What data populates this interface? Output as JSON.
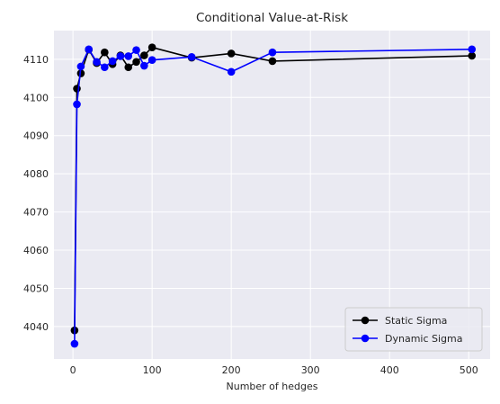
{
  "chart_data": {
    "type": "line",
    "title": "Conditional Value-at-Risk",
    "xlabel": "Number of hedges",
    "ylabel": "",
    "xlim": [
      -24,
      527
    ],
    "ylim": [
      4031.5,
      4117.5
    ],
    "xticks": [
      0,
      100,
      200,
      300,
      400,
      500
    ],
    "yticks": [
      4040,
      4050,
      4060,
      4070,
      4080,
      4090,
      4100,
      4110
    ],
    "grid": true,
    "legend_position": "lower-right",
    "x": [
      2,
      5,
      10,
      20,
      30,
      40,
      50,
      60,
      70,
      80,
      90,
      100,
      150,
      200,
      252,
      504
    ],
    "series": [
      {
        "name": "Static Sigma",
        "color": "#000000",
        "values": [
          4039,
          4102.3,
          4106.3,
          4112.5,
          4109.0,
          4111.8,
          4108.7,
          4111.0,
          4107.9,
          4109.3,
          4111.0,
          4113.1,
          4110.4,
          4111.5,
          4109.5,
          4110.9
        ]
      },
      {
        "name": "Dynamic Sigma",
        "color": "#0000ff",
        "values": [
          4035.5,
          4098.2,
          4108.1,
          4112.6,
          4109.3,
          4107.9,
          4109.5,
          4110.8,
          4110.8,
          4112.4,
          4108.3,
          4109.8,
          4110.6,
          4106.7,
          4111.8,
          4112.6
        ]
      }
    ]
  }
}
